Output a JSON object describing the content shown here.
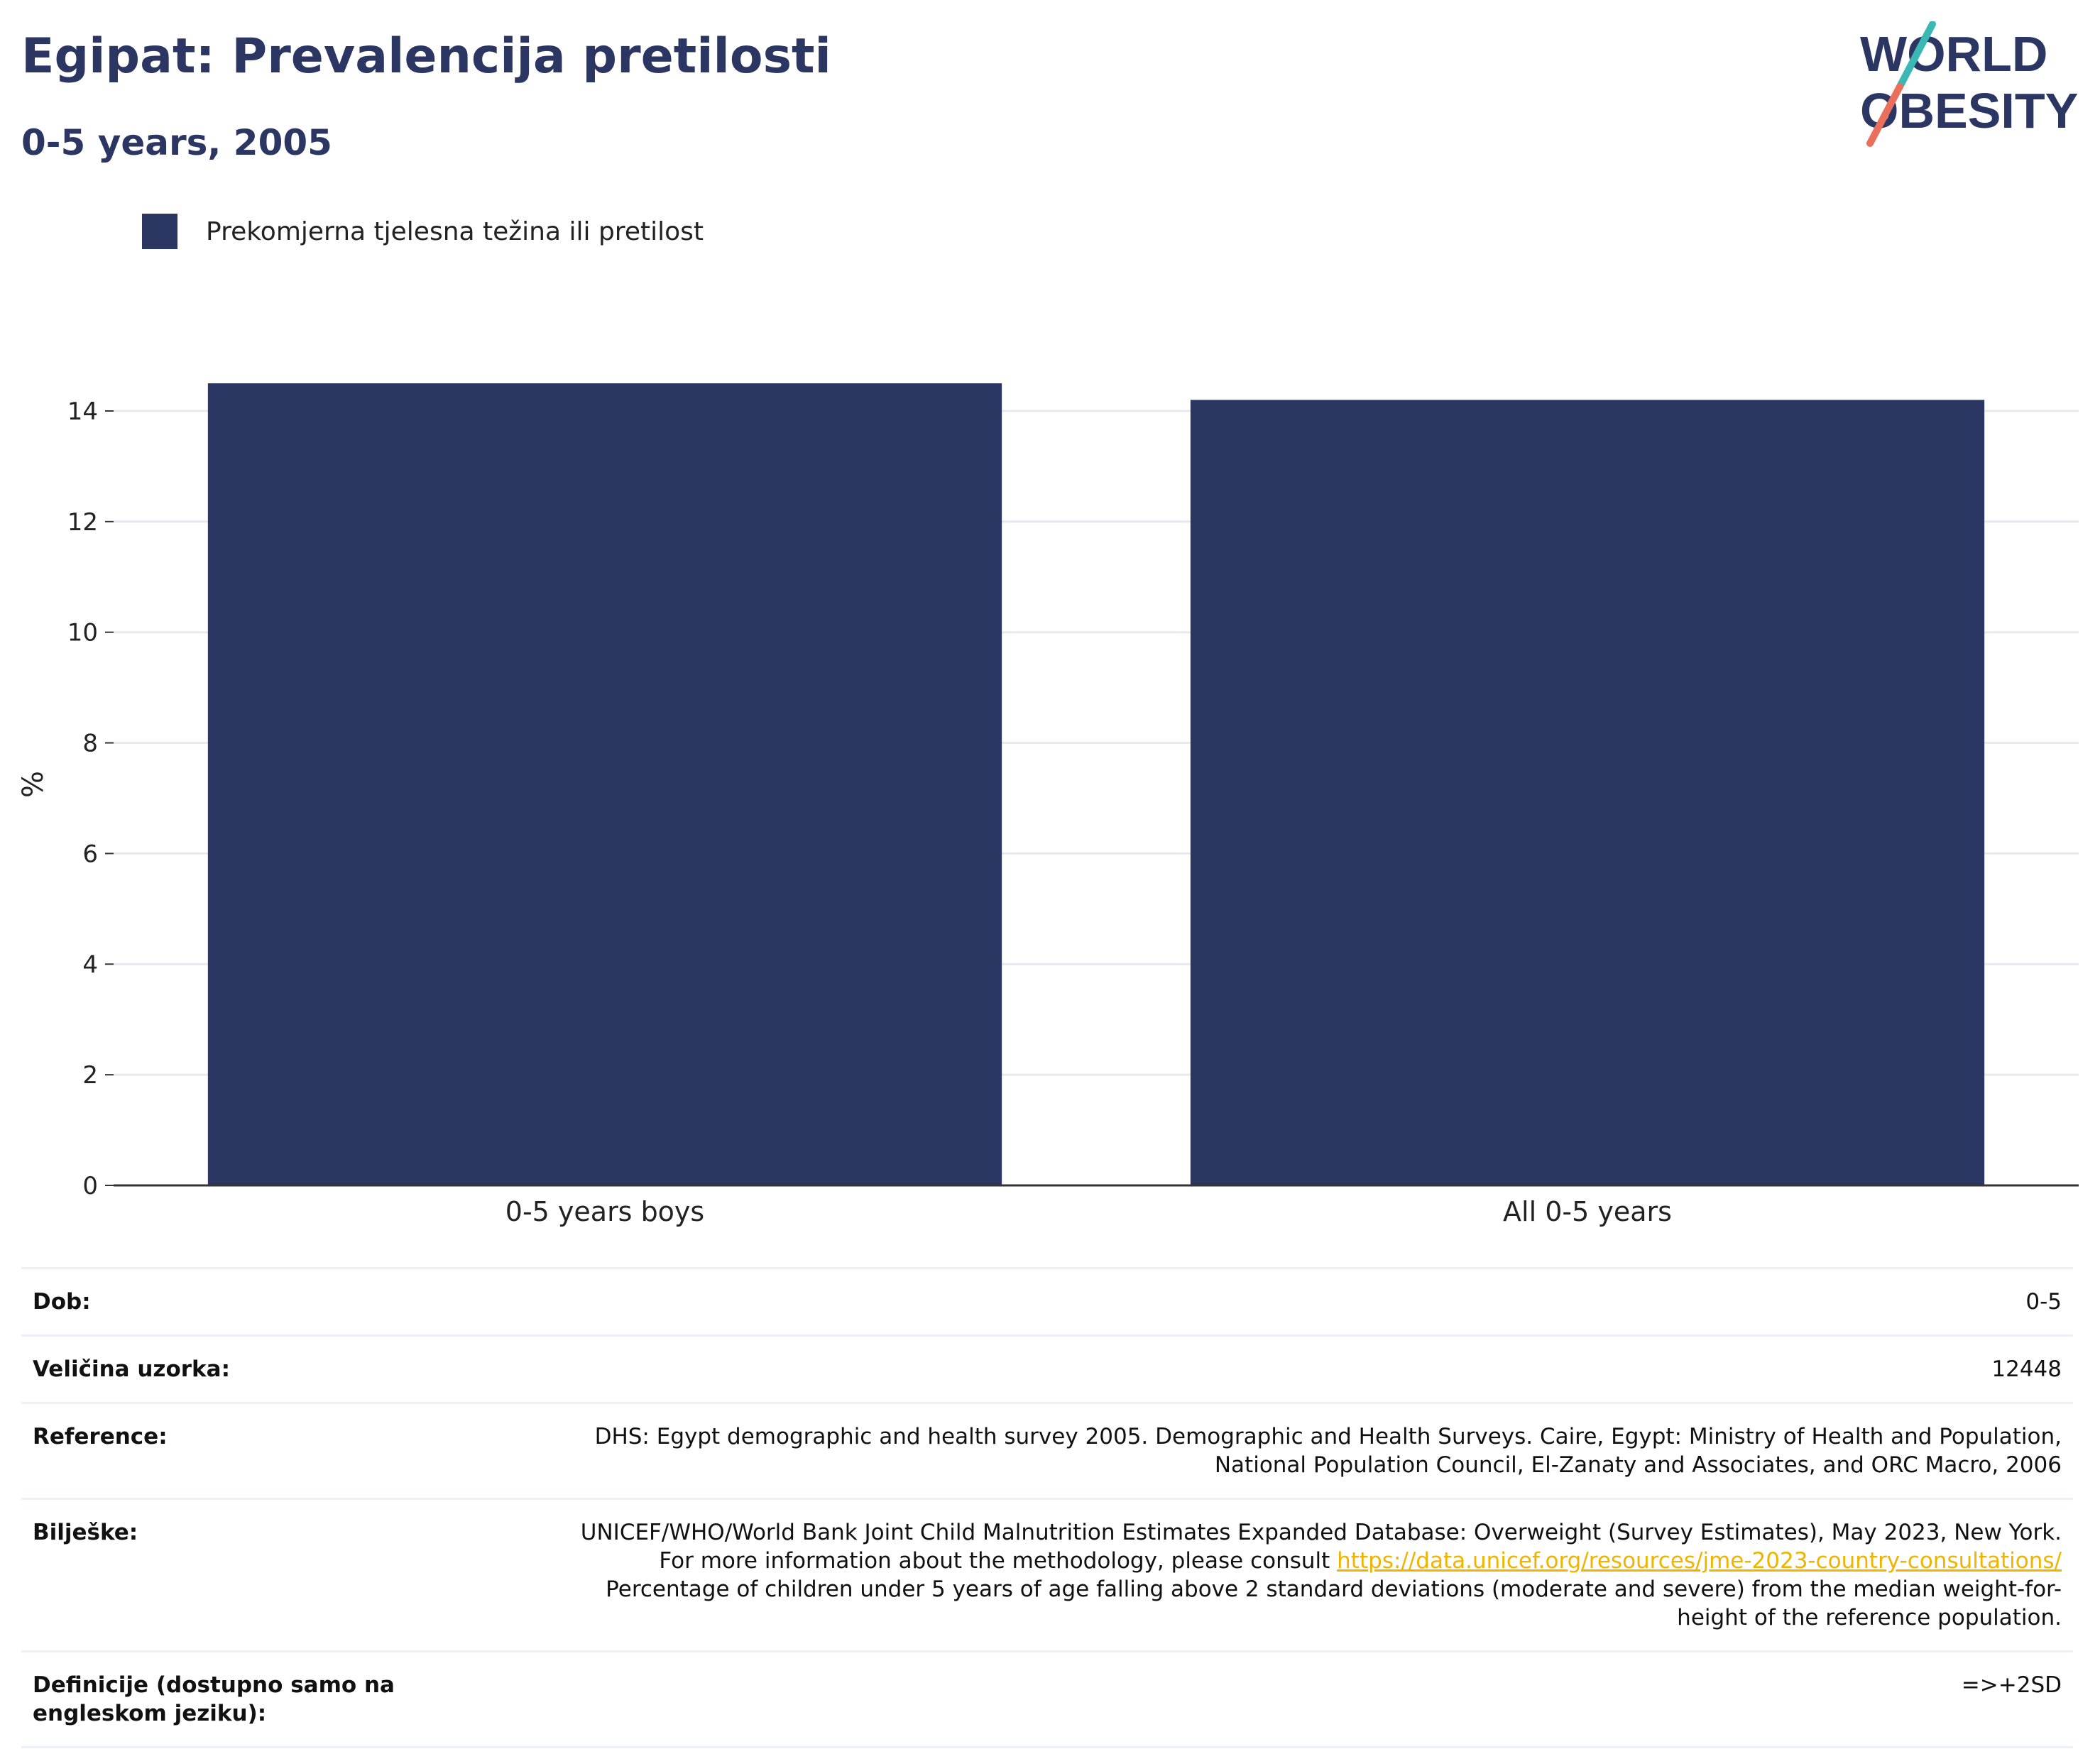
{
  "header": {
    "title": "Egipat: Prevalencija pretilosti",
    "subtitle": "0-5 years, 2005"
  },
  "logo": {
    "line1": "WORLD",
    "line2": "OBESITY",
    "colors": {
      "text": "#2b3663",
      "slash_top": "#3bb8b4",
      "slash_bottom": "#e8705c"
    }
  },
  "colors": {
    "bar": "#2b3663",
    "grid": "#e8e8ee",
    "axis": "#333333",
    "link": "#f0b400"
  },
  "chart_data": {
    "type": "bar",
    "title": "Egipat: Prevalencija pretilosti",
    "subtitle": "0-5 years, 2005",
    "categories": [
      "0-5 years boys",
      "All 0-5 years"
    ],
    "series": [
      {
        "name": "Prekomjerna tjelesna težina ili pretilost",
        "values": [
          14.5,
          14.2
        ],
        "color": "#2b3663"
      }
    ],
    "xlabel": "",
    "ylabel": "%",
    "ylim": [
      0,
      14.5
    ],
    "yticks": [
      0,
      2,
      4,
      6,
      8,
      10,
      12,
      14
    ],
    "grid": true,
    "legend": "top-left"
  },
  "info": {
    "age_label": "Dob:",
    "age_value": "0-5",
    "sample_label": "Veličina uzorka:",
    "sample_value": "12448",
    "reference_label": "Reference:",
    "reference_value": "DHS: Egypt demographic and health survey 2005. Demographic and Health Surveys. Caire, Egypt: Ministry of Health and Population, National Population Council, El-Zanaty and Associates, and ORC Macro, 2006",
    "notes_label": "Bilješke:",
    "notes_text_1": "UNICEF/WHO/World Bank Joint Child Malnutrition Estimates Expanded Database: Overweight (Survey Estimates), May 2023, New York. For more information about the methodology, please consult ",
    "notes_link": "https://data.unicef.org/resources/jme-2023-country-consultations/",
    "notes_text_2": "Percentage of children under 5 years of age falling above 2 standard deviations (moderate and severe) from the median weight-for-height of the reference population.",
    "definition_label": "Definicije (dostupno samo na engleskom jeziku):",
    "definition_value": "=>+2SD"
  }
}
